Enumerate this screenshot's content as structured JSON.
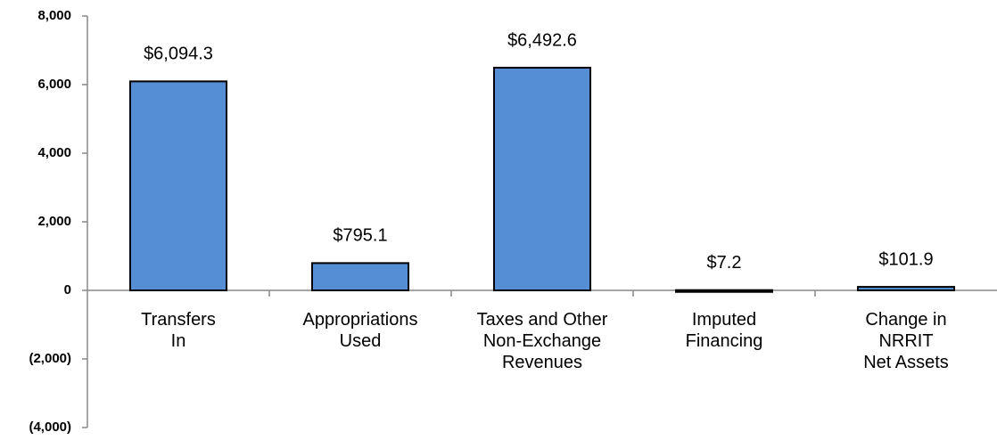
{
  "chart_data": {
    "type": "bar",
    "categories": [
      "Transfers\nIn",
      "Appropriations\nUsed",
      "Taxes and Other\nNon-Exchange\nRevenues",
      "Imputed\nFinancing",
      "Change in\nNRRIT\nNet Assets"
    ],
    "values": [
      6094.3,
      795.1,
      6492.6,
      7.2,
      101.9
    ],
    "value_labels": [
      "$6,094.3",
      "$795.1",
      "$6,492.6",
      "$7.2",
      "$101.9"
    ],
    "color": "#558ed5",
    "ylim": [
      -4000,
      8000
    ],
    "yticks": [
      {
        "value": -4000,
        "label": "(4,000)"
      },
      {
        "value": -2000,
        "label": "(2,000)"
      },
      0,
      {
        "value": 2000,
        "label": "2,000"
      },
      {
        "value": 4000,
        "label": "4,000"
      },
      {
        "value": 6000,
        "label": "6,000"
      },
      {
        "value": 8000,
        "label": "8,000"
      }
    ]
  }
}
